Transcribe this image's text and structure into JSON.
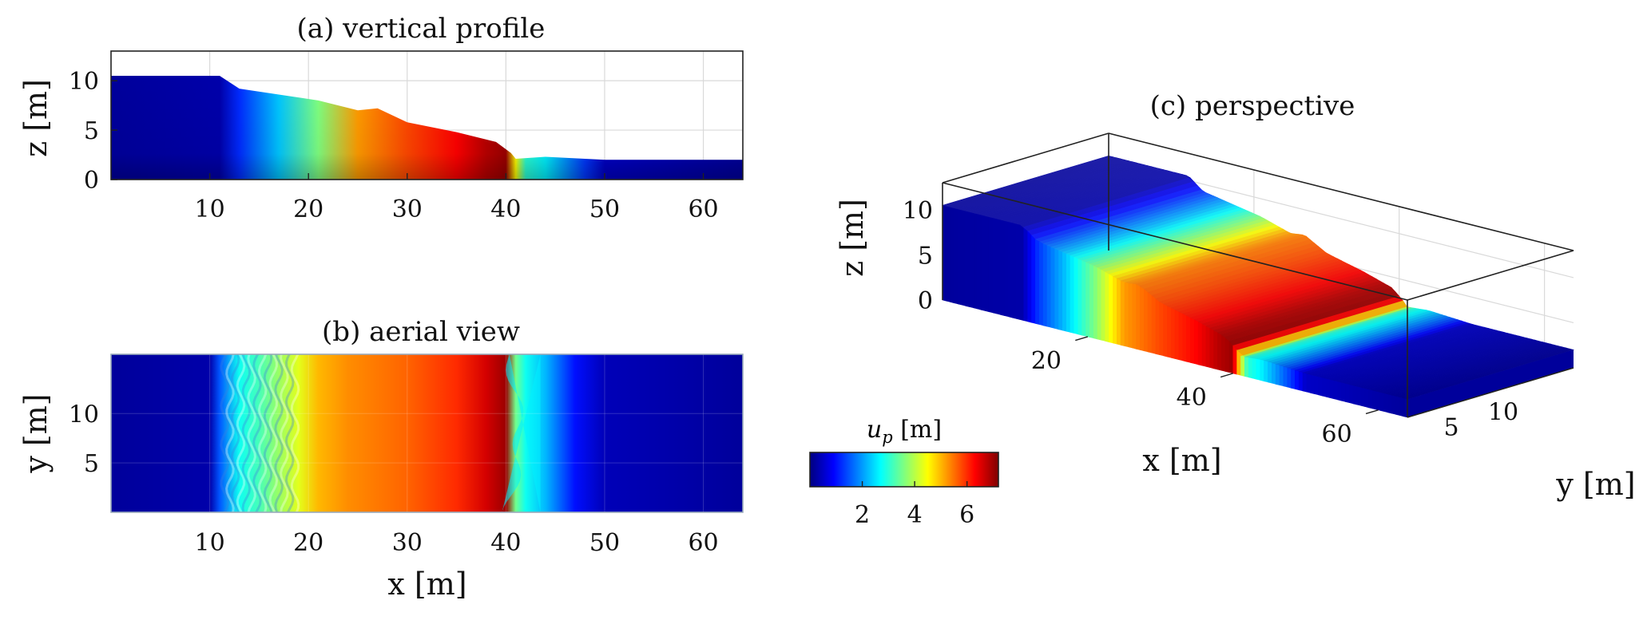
{
  "colormap": {
    "name": "jet",
    "stops": [
      "#00007f",
      "#0000ff",
      "#007fff",
      "#00ffff",
      "#7fff7f",
      "#ffff00",
      "#ff7f00",
      "#ff0000",
      "#7f0000"
    ]
  },
  "chart_data": [
    {
      "id": "a",
      "type": "scatter",
      "title": "(a) vertical profile",
      "xlabel": "",
      "ylabel": "z [m]",
      "xlim": [
        0,
        64
      ],
      "ylim": [
        0,
        13
      ],
      "xticks": [
        10,
        20,
        30,
        40,
        50,
        60
      ],
      "yticks": [
        0,
        5,
        10
      ],
      "grid": true,
      "color_variable": "u_p [m]",
      "surface_profile": {
        "x": [
          0,
          11,
          13,
          17,
          21,
          25,
          27,
          30,
          35,
          39,
          40.5,
          41,
          44,
          48,
          50,
          64
        ],
        "z": [
          10.5,
          10.5,
          9.2,
          8.6,
          8.0,
          7.0,
          7.2,
          5.8,
          4.8,
          3.8,
          2.7,
          2.1,
          2.3,
          2.1,
          2.0,
          2.0
        ]
      },
      "displacement_profile": {
        "x": [
          0,
          11,
          13,
          17,
          21,
          25,
          30,
          35,
          38,
          40,
          41,
          42,
          44,
          48,
          50,
          64
        ],
        "u_p": [
          0.2,
          0.3,
          1.2,
          2.3,
          3.6,
          5.2,
          5.8,
          6.3,
          6.8,
          7.0,
          4.5,
          3.0,
          2.6,
          1.3,
          0.5,
          0.2
        ]
      }
    },
    {
      "id": "b",
      "type": "heatmap",
      "title": "(b) aerial view",
      "xlabel": "x [m]",
      "ylabel": "y [m]",
      "xlim": [
        0,
        64
      ],
      "ylim": [
        0,
        16
      ],
      "xticks": [
        10,
        20,
        30,
        40,
        50,
        60
      ],
      "yticks": [
        5,
        10
      ],
      "grid": true,
      "color_variable": "u_p [m]",
      "displacement_profile": {
        "x": [
          0,
          10,
          11,
          13,
          15,
          17,
          19,
          21,
          24,
          30,
          35,
          38,
          40,
          41,
          42,
          44,
          47,
          50,
          64
        ],
        "u_p": [
          0.2,
          0.3,
          1.5,
          2.8,
          3.2,
          3.8,
          4.3,
          5.0,
          5.3,
          5.6,
          6.0,
          6.6,
          7.0,
          3.5,
          2.8,
          2.2,
          1.0,
          0.4,
          0.2
        ]
      }
    },
    {
      "id": "c",
      "type": "scatter",
      "title": "(c) perspective",
      "xlabel": "x [m]",
      "ylabel": "z [m]",
      "zlabel": "y [m]",
      "xlim": [
        0,
        64
      ],
      "ylim": [
        0,
        13
      ],
      "zlim": [
        0,
        16
      ],
      "xticks": [
        20,
        40,
        60
      ],
      "yticks": [
        0,
        5,
        10
      ],
      "zticks": [
        5,
        10
      ],
      "grid": true,
      "color_variable": "u_p [m]"
    }
  ],
  "colorbar": {
    "label_symbol": "u",
    "label_subscript": "p",
    "label_unit": " [m]",
    "ticks": [
      "2",
      "4",
      "6"
    ],
    "tick_values": [
      2,
      4,
      6
    ],
    "range": [
      0,
      7.2
    ]
  }
}
